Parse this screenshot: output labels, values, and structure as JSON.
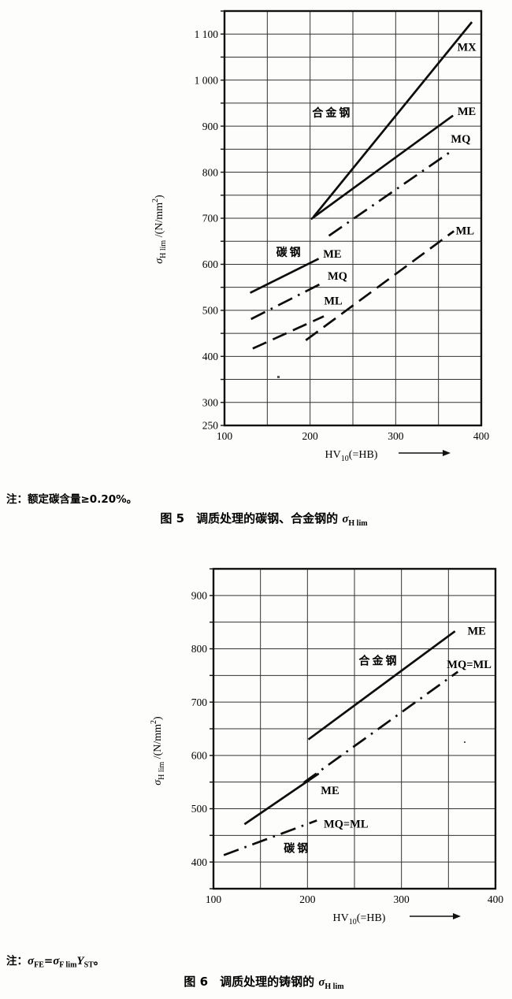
{
  "page": {
    "ink_color": "#111111",
    "note1_parts": [
      {
        "t": "注：额定碳含量≥0.20%。"
      }
    ],
    "caption1_parts": [
      {
        "t": "图 5　调质处理的碳钢、合金钢的 "
      },
      {
        "t": "σ",
        "i": true
      },
      {
        "t": "H lim",
        "sub": true
      }
    ],
    "note2_parts": [
      {
        "t": "注："
      },
      {
        "t": "σ",
        "i": true
      },
      {
        "t": "FE",
        "sub": true
      },
      {
        "t": "="
      },
      {
        "t": "σ",
        "i": true
      },
      {
        "t": "F lim",
        "sub": true
      },
      {
        "t": "Y",
        "i": true
      },
      {
        "t": "ST",
        "sub": true
      },
      {
        "t": "。"
      }
    ],
    "caption2_parts": [
      {
        "t": "图 6　调质处理的铸钢的 "
      },
      {
        "t": "σ",
        "i": true
      },
      {
        "t": "H lim",
        "sub": true
      }
    ]
  },
  "chart_data": [
    {
      "id": "figure5",
      "type": "line",
      "caption": "图 5 调质处理的碳钢、合金钢的 σH lim",
      "xlabel": "HV10(=HB)",
      "ylabel": "σH lim /(N/mm²)",
      "xlabel_parts": [
        {
          "t": "HV"
        },
        {
          "t": "10",
          "sub": true
        },
        {
          "t": "(=HB)"
        }
      ],
      "ylabel_parts": [
        {
          "t": "σ",
          "i": true
        },
        {
          "t": "H lim",
          "sub": true
        },
        {
          "t": " /(N/mm"
        },
        {
          "t": "2",
          "sup": true
        },
        {
          "t": ")"
        }
      ],
      "xlim": [
        100,
        400
      ],
      "ylim": [
        250,
        1150
      ],
      "grid_step_x": 50,
      "grid_step_y": 50,
      "x_ticks": [
        {
          "v": 100,
          "label": "100"
        },
        {
          "v": 200,
          "label": "200"
        },
        {
          "v": 300,
          "label": "300"
        },
        {
          "v": 400,
          "label": "400"
        }
      ],
      "y_ticks": [
        {
          "v": 250,
          "label": "250"
        },
        {
          "v": 300,
          "label": "300"
        },
        {
          "v": 400,
          "label": "400"
        },
        {
          "v": 500,
          "label": "500"
        },
        {
          "v": 600,
          "label": "600"
        },
        {
          "v": 700,
          "label": "700"
        },
        {
          "v": 800,
          "label": "800"
        },
        {
          "v": 900,
          "label": "900"
        },
        {
          "v": 1000,
          "label": "1 000"
        },
        {
          "v": 1100,
          "label": "1 100"
        }
      ],
      "series": [
        {
          "id": "alloy-MX",
          "material": "合金钢",
          "grade": "MX",
          "style": "solid",
          "points": [
            [
              204,
              703
            ],
            [
              389,
              1126
            ]
          ]
        },
        {
          "id": "alloy-ME",
          "material": "合金钢",
          "grade": "ME",
          "style": "solid",
          "points": [
            [
              201,
              698
            ],
            [
              367,
              923
            ]
          ]
        },
        {
          "id": "alloy-MQ",
          "material": "合金钢",
          "grade": "MQ",
          "style": "dashdot",
          "points": [
            [
              222,
              662
            ],
            [
              363,
              843
            ]
          ]
        },
        {
          "id": "alloy-ML",
          "material": "合金钢",
          "grade": "ML",
          "style": "dashed",
          "points": [
            [
              195,
              435
            ],
            [
              368,
              672
            ]
          ]
        },
        {
          "id": "carbon-ME",
          "material": "碳钢",
          "grade": "ME",
          "style": "solid",
          "points": [
            [
              130,
              538
            ],
            [
              210,
              612
            ]
          ]
        },
        {
          "id": "carbon-MQ",
          "material": "碳钢",
          "grade": "MQ",
          "style": "dashdot",
          "points": [
            [
              131,
              481
            ],
            [
              215,
              560
            ]
          ]
        },
        {
          "id": "carbon-ML",
          "material": "碳钢",
          "grade": "ML",
          "style": "dashed",
          "points": [
            [
              133,
              417
            ],
            [
              216,
              487
            ]
          ]
        }
      ],
      "annotations": [
        {
          "text": "合金钢",
          "x": 226,
          "y": 929,
          "cjk": true
        },
        {
          "text": "碳钢",
          "x": 176,
          "y": 626,
          "cjk": true
        },
        {
          "text": "MX",
          "x": 383,
          "y": 1072
        },
        {
          "text": "ME",
          "x": 383,
          "y": 933
        },
        {
          "text": "MQ",
          "x": 376,
          "y": 873
        },
        {
          "text": "ML",
          "x": 381,
          "y": 674
        },
        {
          "text": "ME",
          "x": 226,
          "y": 623
        },
        {
          "text": "MQ",
          "x": 232,
          "y": 575
        },
        {
          "text": "ML",
          "x": 227,
          "y": 521
        }
      ]
    },
    {
      "id": "figure6",
      "type": "line",
      "caption": "图 6 调质处理的铸钢的 σH lim",
      "xlabel": "HV10(=HB)",
      "ylabel": "σH lim /(N/mm²)",
      "xlabel_parts": [
        {
          "t": "HV"
        },
        {
          "t": "10",
          "sub": true
        },
        {
          "t": "(=HB)"
        }
      ],
      "ylabel_parts": [
        {
          "t": "σ",
          "i": true
        },
        {
          "t": "H lim",
          "sub": true
        },
        {
          "t": " /(N/mm"
        },
        {
          "t": "2",
          "sup": true
        },
        {
          "t": ")"
        }
      ],
      "xlim": [
        100,
        400
      ],
      "ylim": [
        350,
        950
      ],
      "grid_step_x": 50,
      "grid_step_y": 50,
      "x_ticks": [
        {
          "v": 100,
          "label": "100"
        },
        {
          "v": 200,
          "label": "200"
        },
        {
          "v": 300,
          "label": "300"
        },
        {
          "v": 400,
          "label": "400"
        }
      ],
      "y_ticks": [
        {
          "v": 400,
          "label": "400"
        },
        {
          "v": 500,
          "label": "500"
        },
        {
          "v": 600,
          "label": "600"
        },
        {
          "v": 700,
          "label": "700"
        },
        {
          "v": 800,
          "label": "800"
        },
        {
          "v": 900,
          "label": "900"
        }
      ],
      "series": [
        {
          "id": "alloy-ME",
          "material": "合金钢",
          "grade": "ME",
          "style": "solid",
          "points": [
            [
              201,
              630
            ],
            [
              357,
              833
            ]
          ]
        },
        {
          "id": "alloy-MQ-ML",
          "material": "合金钢",
          "grade": "MQ=ML",
          "style": "dashdot",
          "points": [
            [
              196,
              549
            ],
            [
              360,
              757
            ]
          ]
        },
        {
          "id": "carbon-ME",
          "material": "碳钢",
          "grade": "ME",
          "style": "solid",
          "points": [
            [
              133,
              471
            ],
            [
              212,
              566
            ]
          ]
        },
        {
          "id": "carbon-MQ-ML",
          "material": "碳钢",
          "grade": "MQ=ML",
          "style": "dashdot",
          "points": [
            [
              111,
              413
            ],
            [
              210,
              478
            ]
          ]
        }
      ],
      "annotations": [
        {
          "text": "合金钢",
          "x": 276,
          "y": 778,
          "cjk": true
        },
        {
          "text": "碳钢",
          "x": 189,
          "y": 426,
          "cjk": true
        },
        {
          "text": "ME",
          "x": 380,
          "y": 834
        },
        {
          "text": "MQ=ML",
          "x": 372,
          "y": 771
        },
        {
          "text": "ME",
          "x": 224,
          "y": 535
        },
        {
          "text": "MQ=ML",
          "x": 241,
          "y": 472
        }
      ]
    }
  ]
}
